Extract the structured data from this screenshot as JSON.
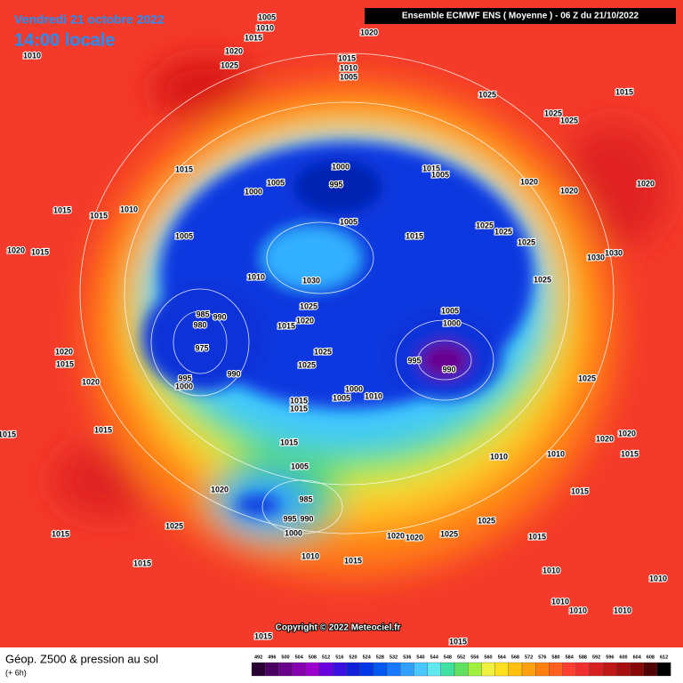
{
  "header": {
    "date": "Vendredi 21 octobre 2022",
    "time": "14:00 locale",
    "model": "Ensemble ECMWF ENS  ( Moyenne )  -  06 Z du 21/10/2022"
  },
  "map": {
    "isobar_labels": [
      1005,
      1010,
      1015,
      1020,
      1010,
      1020,
      1025,
      1015,
      1010,
      1005,
      1025,
      1015,
      1025,
      1025,
      1015,
      1000,
      995,
      1005,
      1000,
      1015,
      1005,
      1020,
      1020,
      1020,
      1015,
      1015,
      1010,
      1005,
      1005,
      1015,
      1025,
      1025,
      1025,
      1030,
      1030,
      1020,
      1015,
      1010,
      1030,
      1025,
      1025,
      1020,
      1015,
      1005,
      1000,
      985,
      990,
      980,
      975,
      990,
      995,
      1000,
      1025,
      1025,
      995,
      990,
      1000,
      1005,
      1010,
      1015,
      1015,
      1020,
      1015,
      1020,
      1025,
      1015,
      1015,
      1015,
      1005,
      1010,
      1010,
      1015,
      1020,
      1020,
      985,
      995,
      990,
      1000,
      1020,
      1015,
      1025,
      1015,
      1015,
      1010,
      1015,
      1020,
      1020,
      1025,
      1025,
      1015,
      1010,
      1010,
      1010,
      1010,
      1010,
      1015,
      1015
    ],
    "copyright": "Copyright © 2022 Meteociel.fr"
  },
  "footer": {
    "title": "Géop. Z500 & pression au sol",
    "lead": "(+ 6h)"
  },
  "legend": {
    "values": [
      492,
      496,
      500,
      504,
      508,
      512,
      516,
      520,
      524,
      528,
      532,
      536,
      540,
      544,
      548,
      552,
      556,
      560,
      564,
      568,
      572,
      576,
      580,
      584,
      588,
      592,
      596,
      600,
      604,
      608,
      612
    ],
    "colors": [
      "#2b0033",
      "#4a0060",
      "#68008a",
      "#8600b0",
      "#9c00cc",
      "#6a00e0",
      "#3a10e0",
      "#1020d8",
      "#0038e8",
      "#0058f0",
      "#1878ff",
      "#30a0ff",
      "#48c8ff",
      "#60e8f0",
      "#40e0a0",
      "#60e060",
      "#a0f040",
      "#f0f040",
      "#ffe020",
      "#ffc010",
      "#ffa010",
      "#ff8010",
      "#ff6020",
      "#ff4030",
      "#f03030",
      "#d82020",
      "#c01818",
      "#a81010",
      "#880808",
      "#500404",
      "#000000"
    ]
  }
}
